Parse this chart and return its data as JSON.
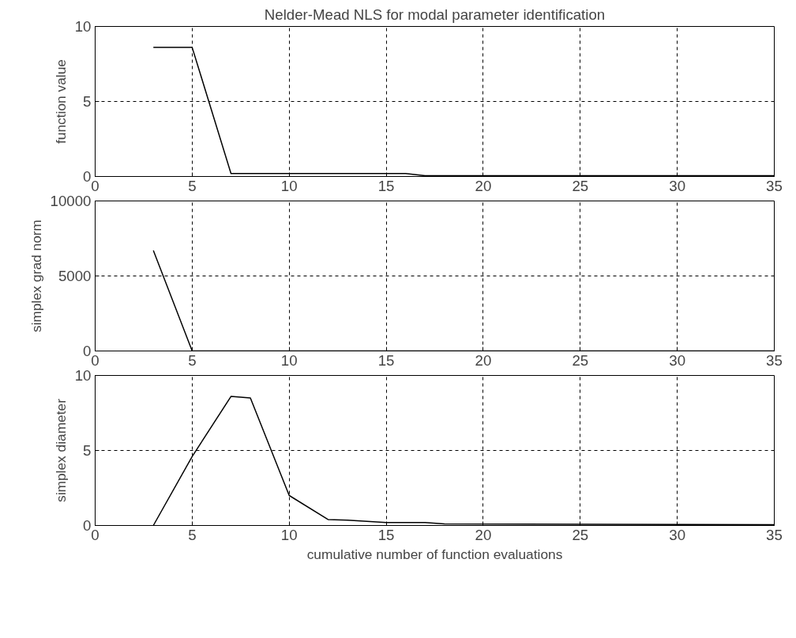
{
  "chart_data": [
    {
      "type": "line",
      "title": "Nelder-Mead NLS for modal parameter identification",
      "ylabel": "function value",
      "xlim": [
        0,
        35
      ],
      "xticks": [
        0,
        5,
        10,
        15,
        20,
        25,
        30,
        35
      ],
      "ylim": [
        0,
        10
      ],
      "yticks": [
        0,
        5,
        10
      ],
      "grid": true,
      "line_style": "solid",
      "series": [
        {
          "color": "#000000",
          "x": [
            3,
            5,
            7,
            16,
            17,
            35
          ],
          "values": [
            8.6,
            8.6,
            0.2,
            0.2,
            0.05,
            0.05
          ]
        }
      ]
    },
    {
      "type": "line",
      "ylabel": "simplex grad norm",
      "xlim": [
        0,
        35
      ],
      "xticks": [
        0,
        5,
        10,
        15,
        20,
        25,
        30,
        35
      ],
      "ylim": [
        0,
        10000
      ],
      "yticks": [
        0,
        5000,
        10000
      ],
      "grid": true,
      "line_style": "solid",
      "series": [
        {
          "color": "#000000",
          "x": [
            3,
            5,
            35
          ],
          "values": [
            6700,
            0,
            0
          ]
        }
      ]
    },
    {
      "type": "line",
      "xlabel": "cumulative number of function evaluations",
      "ylabel": "simplex diameter",
      "xlim": [
        0,
        35
      ],
      "xticks": [
        0,
        5,
        10,
        15,
        20,
        25,
        30,
        35
      ],
      "ylim": [
        0,
        10
      ],
      "yticks": [
        0,
        5,
        10
      ],
      "grid": true,
      "line_style": "solid",
      "series": [
        {
          "color": "#000000",
          "x": [
            3,
            5,
            7,
            8,
            10,
            12,
            13,
            15,
            17,
            18,
            35
          ],
          "values": [
            0,
            4.6,
            8.6,
            8.5,
            2.0,
            0.4,
            0.35,
            0.2,
            0.2,
            0.1,
            0.05
          ]
        }
      ]
    }
  ]
}
